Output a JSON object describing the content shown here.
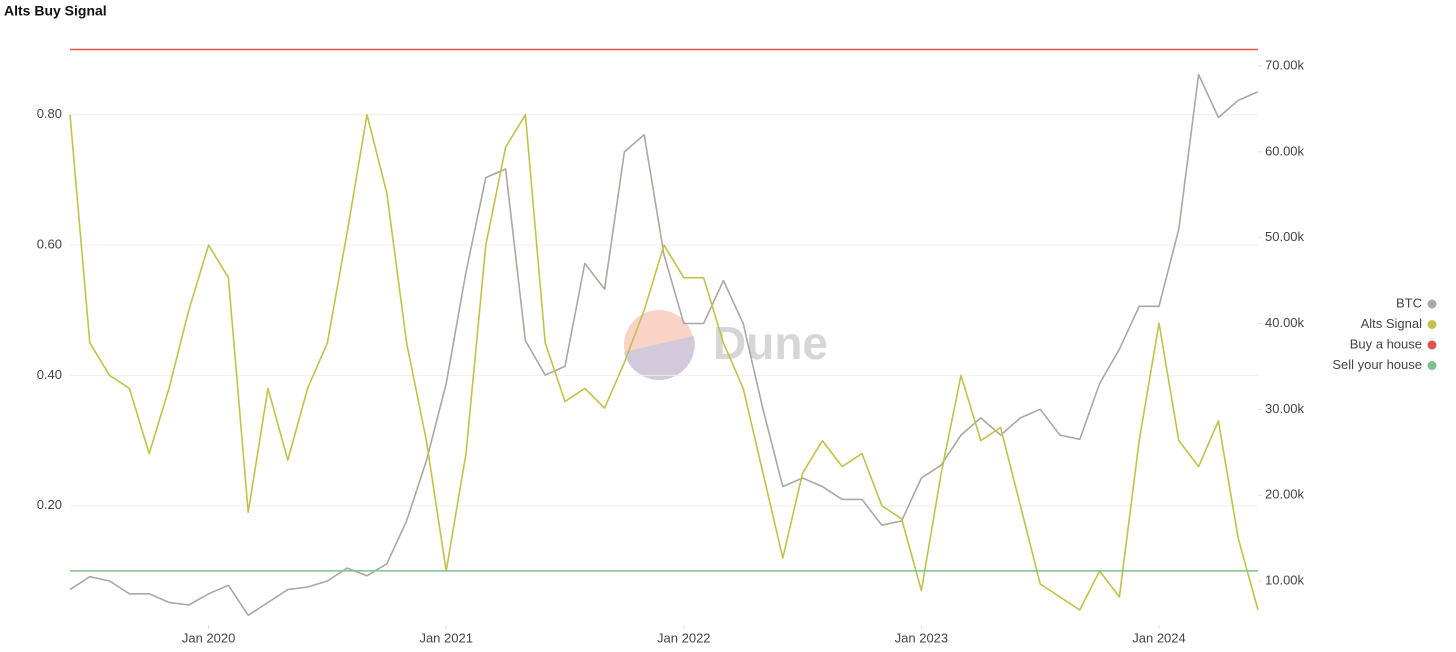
{
  "chart_data": {
    "type": "line",
    "title": "Alts Buy Signal",
    "watermark": "Dune",
    "x": [
      "2019-06",
      "2019-07",
      "2019-08",
      "2019-09",
      "2019-10",
      "2019-11",
      "2019-12",
      "2020-01",
      "2020-02",
      "2020-03",
      "2020-04",
      "2020-05",
      "2020-06",
      "2020-07",
      "2020-08",
      "2020-09",
      "2020-10",
      "2020-11",
      "2020-12",
      "2021-01",
      "2021-02",
      "2021-03",
      "2021-04",
      "2021-05",
      "2021-06",
      "2021-07",
      "2021-08",
      "2021-09",
      "2021-10",
      "2021-11",
      "2021-12",
      "2022-01",
      "2022-02",
      "2022-03",
      "2022-04",
      "2022-05",
      "2022-06",
      "2022-07",
      "2022-08",
      "2022-09",
      "2022-10",
      "2022-11",
      "2022-12",
      "2023-01",
      "2023-02",
      "2023-03",
      "2023-04",
      "2023-05",
      "2023-06",
      "2023-07",
      "2023-08",
      "2023-09",
      "2023-10",
      "2023-11",
      "2023-12",
      "2024-01",
      "2024-02",
      "2024-03",
      "2024-04",
      "2024-05",
      "2024-06"
    ],
    "xlim": [
      "2019-06",
      "2024-06"
    ],
    "xticks": [
      {
        "value": "2020-01",
        "label": "Jan 2020"
      },
      {
        "value": "2021-01",
        "label": "Jan 2021"
      },
      {
        "value": "2022-01",
        "label": "Jan 2022"
      },
      {
        "value": "2023-01",
        "label": "Jan 2023"
      },
      {
        "value": "2024-01",
        "label": "Jan 2024"
      }
    ],
    "ylim": [
      0.017,
      0.907
    ],
    "yticks": [
      {
        "value": 0.2,
        "label": "0.20"
      },
      {
        "value": 0.4,
        "label": "0.40"
      },
      {
        "value": 0.6,
        "label": "0.60"
      },
      {
        "value": 0.8,
        "label": "0.80"
      }
    ],
    "y2lim": [
      4870,
      72450
    ],
    "y2ticks": [
      {
        "value": 10000,
        "label": "10.00k"
      },
      {
        "value": 20000,
        "label": "20.00k"
      },
      {
        "value": 30000,
        "label": "30.00k"
      },
      {
        "value": 40000,
        "label": "40.00k"
      },
      {
        "value": 50000,
        "label": "50.00k"
      },
      {
        "value": 60000,
        "label": "60.00k"
      },
      {
        "value": 70000,
        "label": "70.00k"
      }
    ],
    "grid": true,
    "legend": "right",
    "series": [
      {
        "name": "BTC",
        "color": "#a9a9a1",
        "axis": "y2",
        "values": [
          9000,
          10500,
          10000,
          8500,
          8500,
          7500,
          7200,
          8500,
          9500,
          6000,
          7500,
          9000,
          9300,
          10000,
          11500,
          10600,
          12000,
          17000,
          24000,
          33000,
          46000,
          57000,
          58000,
          38000,
          34000,
          35000,
          47000,
          44000,
          60000,
          62000,
          48000,
          40000,
          40000,
          45000,
          40000,
          30000,
          21000,
          22000,
          21000,
          19500,
          19500,
          16500,
          17000,
          22000,
          23500,
          27000,
          29000,
          27000,
          29000,
          30000,
          27000,
          26500,
          33000,
          37000,
          42000,
          42000,
          51000,
          69000,
          64000,
          66000,
          67000
        ]
      },
      {
        "name": "Alts Signal",
        "color": "#c2c24a",
        "values": [
          0.8,
          0.45,
          0.4,
          0.38,
          0.28,
          0.38,
          0.5,
          0.6,
          0.55,
          0.19,
          0.38,
          0.27,
          0.38,
          0.45,
          0.62,
          0.8,
          0.68,
          0.45,
          0.3,
          0.1,
          0.28,
          0.6,
          0.75,
          0.8,
          0.45,
          0.36,
          0.38,
          0.35,
          0.42,
          0.5,
          0.6,
          0.55,
          0.55,
          0.45,
          0.38,
          0.25,
          0.12,
          0.25,
          0.3,
          0.26,
          0.28,
          0.2,
          0.18,
          0.07,
          0.25,
          0.4,
          0.3,
          0.32,
          0.2,
          0.08,
          0.06,
          0.04,
          0.1,
          0.06,
          0.3,
          0.48,
          0.3,
          0.26,
          0.33,
          0.15,
          0.04
        ]
      },
      {
        "name": "Buy a house",
        "color": "#e05252",
        "value": 0.9
      },
      {
        "name": "Sell your house",
        "color": "#7fc08c",
        "value": 0.1
      }
    ]
  }
}
